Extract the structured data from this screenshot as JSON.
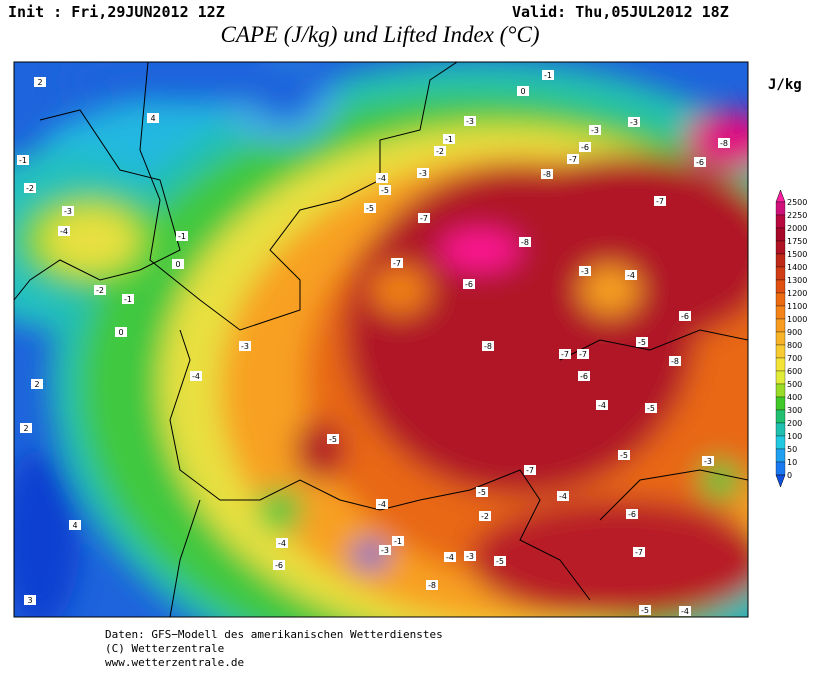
{
  "header": {
    "init": "Init : Fri,29JUN2012 12Z",
    "valid": "Valid: Thu,05JUL2012 18Z",
    "title": "CAPE (J/kg) und Lifted Index (°C)"
  },
  "legend": {
    "unit": "J/kg",
    "levels": [
      2500,
      2250,
      2000,
      1750,
      1500,
      1400,
      1300,
      1200,
      1100,
      1000,
      900,
      800,
      700,
      600,
      500,
      400,
      300,
      200,
      100,
      50,
      10,
      0
    ],
    "colors": [
      "#ff20a0",
      "#d0107a",
      "#b8083e",
      "#a80828",
      "#b01424",
      "#c02818",
      "#d03c14",
      "#e05010",
      "#ec6a10",
      "#f48418",
      "#f89c20",
      "#f8b428",
      "#f8cc30",
      "#f4e438",
      "#e0ec38",
      "#98dc28",
      "#40c828",
      "#20c070",
      "#20c0b0",
      "#20c8e0",
      "#20a0f0",
      "#1a78f0",
      "#1050e0"
    ]
  },
  "map": {
    "contour_labels": [
      2,
      -1,
      -2,
      -3,
      -4,
      4,
      -1,
      0,
      -2,
      -1,
      -3,
      -3,
      -3,
      -6,
      -7,
      -6,
      -8,
      -8,
      -3,
      -4,
      -5,
      -5,
      -7,
      -7,
      -8,
      -7,
      -6,
      -3,
      -4,
      -6,
      -5,
      -8,
      -7,
      -7,
      -6,
      -8,
      -3,
      -4,
      -5,
      -4,
      -5,
      -5,
      -3,
      -7,
      -5,
      -4,
      -6,
      -7,
      -2,
      -4,
      -1,
      -3,
      -4,
      -3,
      -5,
      -4,
      -6,
      -8,
      -5,
      -4,
      0,
      -1,
      -2,
      2,
      2,
      4,
      3,
      0,
      -1
    ]
  },
  "footer": {
    "line1": "Daten: GFS−Modell des amerikanischen Wetterdienstes",
    "line2": "(C) Wetterzentrale",
    "line3": "www.wetterzentrale.de"
  }
}
